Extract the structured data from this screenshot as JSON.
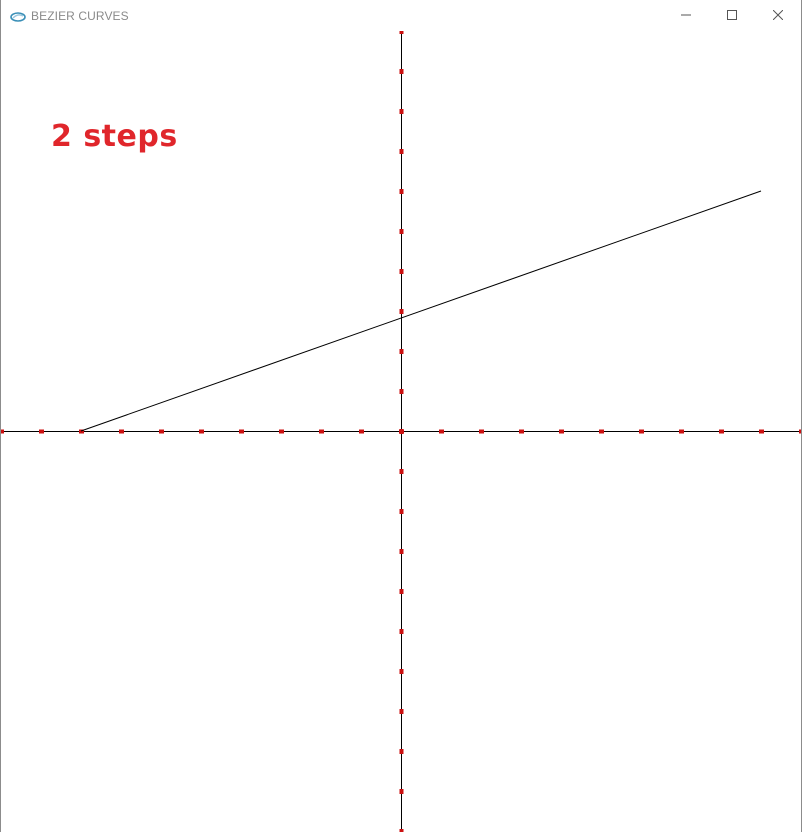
{
  "window": {
    "title": "BEZIER CURVES",
    "controls": {
      "minimize_icon": "minimize-icon",
      "maximize_icon": "maximize-icon",
      "close_icon": "close-icon"
    }
  },
  "canvas": {
    "status_text": "2 steps",
    "colors": {
      "axis": "#000000",
      "tick": "#cc1111",
      "curve": "#000000",
      "label": "#e0262b"
    },
    "curve_points": [
      [
        -8,
        0
      ],
      [
        9,
        6
      ]
    ],
    "axis_range": {
      "x": [
        -10,
        10
      ],
      "y": [
        -10,
        10
      ]
    }
  }
}
